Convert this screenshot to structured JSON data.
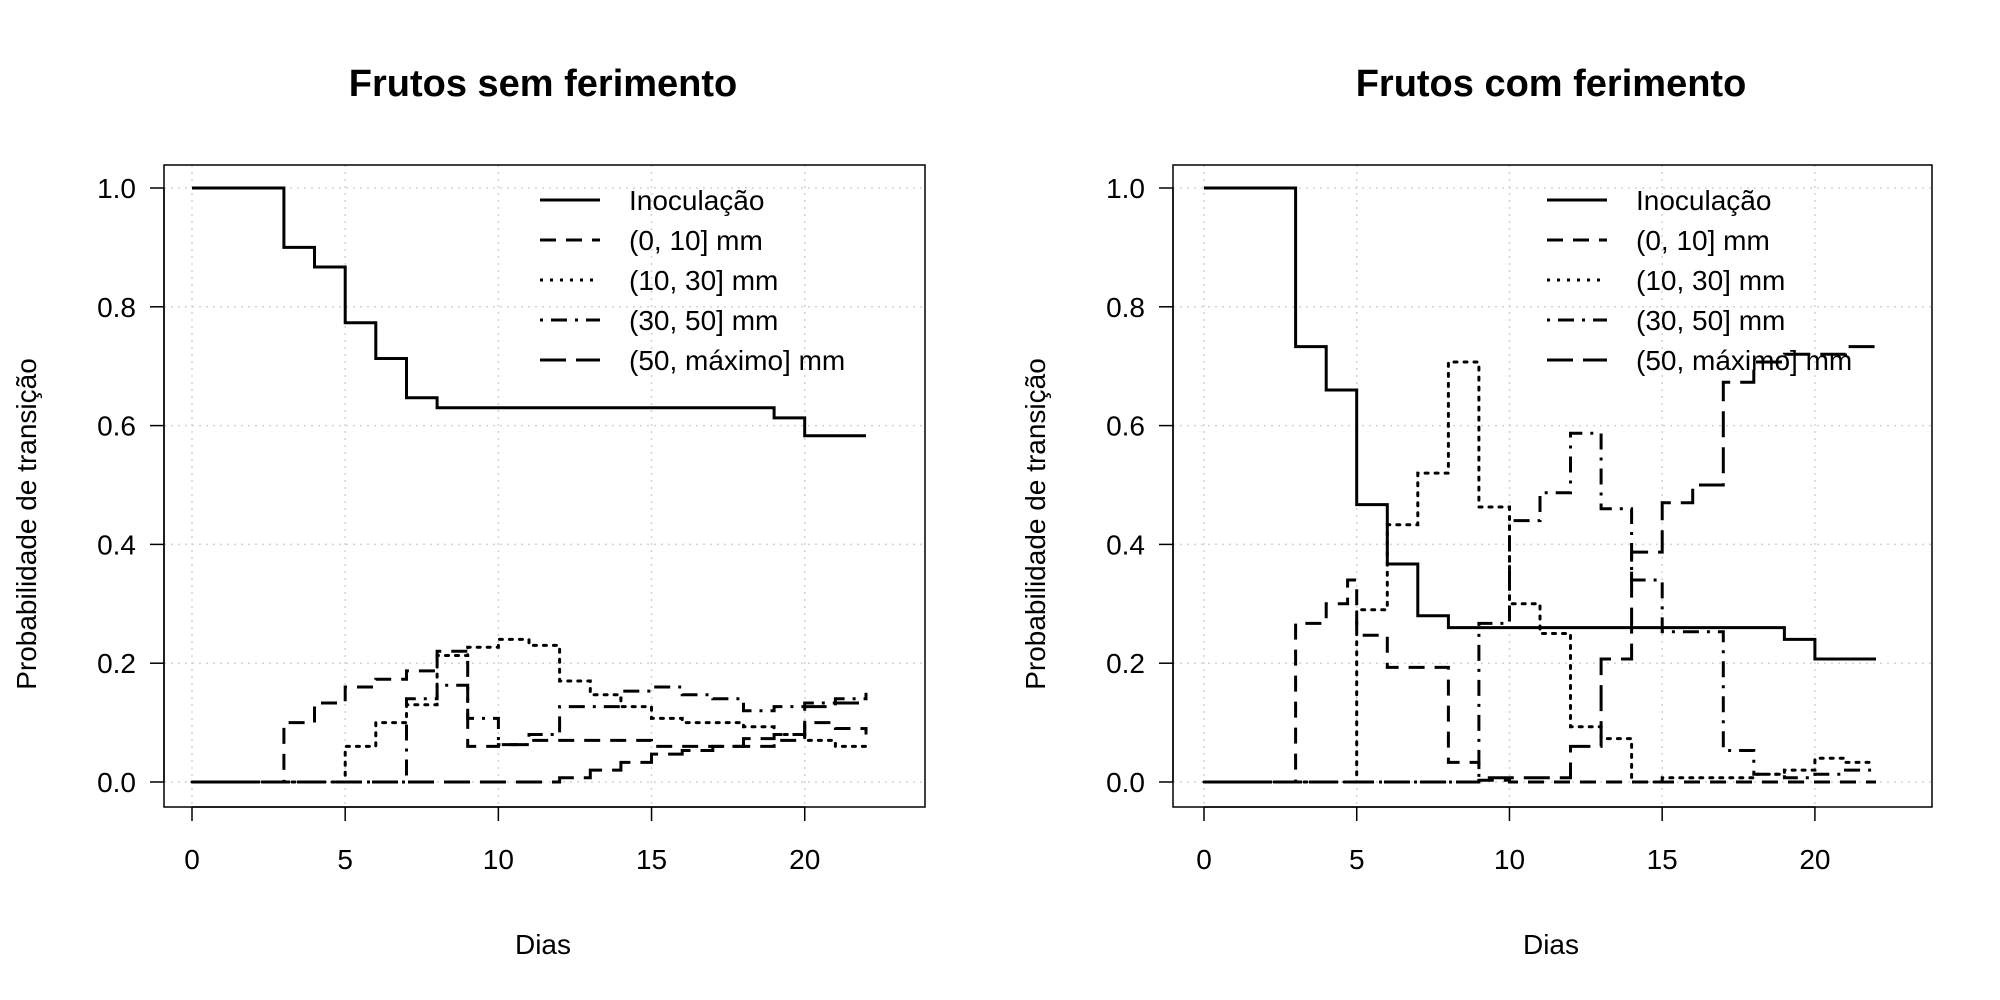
{
  "chart_data": [
    {
      "type": "line",
      "step": true,
      "title": "Frutos sem ferimento",
      "xlabel": "Dias",
      "ylabel": "Probabilidade de transição",
      "xlim": [
        0,
        22
      ],
      "ylim": [
        0,
        1
      ],
      "xticks": [
        0,
        5,
        10,
        15,
        20
      ],
      "yticks": [
        "0.0",
        "0.2",
        "0.4",
        "0.6",
        "0.8",
        "1.0"
      ],
      "grid": true,
      "legend_position": "top-right",
      "series": [
        {
          "name": "Inoculação",
          "dash": "solid",
          "points": [
            [
              0,
              1.0
            ],
            [
              3,
              0.9
            ],
            [
              4,
              0.867
            ],
            [
              5,
              0.773
            ],
            [
              6,
              0.713
            ],
            [
              7,
              0.647
            ],
            [
              8,
              0.63
            ],
            [
              19,
              0.613
            ],
            [
              20,
              0.583
            ],
            [
              22,
              0.583
            ]
          ]
        },
        {
          "name": "(0, 10] mm",
          "dash": "dashed",
          "points": [
            [
              0,
              0
            ],
            [
              3,
              0.1
            ],
            [
              4,
              0.133
            ],
            [
              5,
              0.16
            ],
            [
              6,
              0.173
            ],
            [
              7,
              0.187
            ],
            [
              8,
              0.22
            ],
            [
              9,
              0.06
            ],
            [
              10,
              0.063
            ],
            [
              11,
              0.07
            ],
            [
              15,
              0.06
            ],
            [
              19,
              0.07
            ],
            [
              20,
              0.1
            ],
            [
              21,
              0.09
            ],
            [
              22,
              0.08
            ]
          ]
        },
        {
          "name": "(10, 30] mm",
          "dash": "dotted",
          "points": [
            [
              0,
              0
            ],
            [
              5,
              0.06
            ],
            [
              6,
              0.1
            ],
            [
              7,
              0.13
            ],
            [
              8,
              0.213
            ],
            [
              9,
              0.227
            ],
            [
              10,
              0.24
            ],
            [
              11,
              0.23
            ],
            [
              12,
              0.17
            ],
            [
              13,
              0.147
            ],
            [
              14,
              0.127
            ],
            [
              15,
              0.107
            ],
            [
              16,
              0.1
            ],
            [
              17,
              0.1
            ],
            [
              18,
              0.093
            ],
            [
              19,
              0.08
            ],
            [
              20,
              0.07
            ],
            [
              21,
              0.06
            ],
            [
              22,
              0.05
            ]
          ]
        },
        {
          "name": "(30, 50] mm",
          "dash": "dotdash",
          "points": [
            [
              0,
              0
            ],
            [
              7,
              0.14
            ],
            [
              8,
              0.163
            ],
            [
              9,
              0.107
            ],
            [
              10,
              0.063
            ],
            [
              11,
              0.08
            ],
            [
              12,
              0.127
            ],
            [
              13,
              0.127
            ],
            [
              14,
              0.153
            ],
            [
              15,
              0.16
            ],
            [
              16,
              0.147
            ],
            [
              17,
              0.14
            ],
            [
              18,
              0.12
            ],
            [
              19,
              0.127
            ],
            [
              20,
              0.133
            ],
            [
              21,
              0.14
            ],
            [
              22,
              0.15
            ]
          ]
        },
        {
          "name": "(50, máximo] mm",
          "dash": "longdash",
          "points": [
            [
              0,
              0
            ],
            [
              12,
              0.007
            ],
            [
              13,
              0.02
            ],
            [
              14,
              0.033
            ],
            [
              15,
              0.047
            ],
            [
              16,
              0.053
            ],
            [
              17,
              0.06
            ],
            [
              18,
              0.073
            ],
            [
              19,
              0.08
            ],
            [
              20,
              0.127
            ],
            [
              21,
              0.133
            ],
            [
              22,
              0.15
            ]
          ]
        }
      ]
    },
    {
      "type": "line",
      "step": true,
      "title": "Frutos com ferimento",
      "xlabel": "Dias",
      "ylabel": "Probabilidade de transição",
      "xlim": [
        0,
        22
      ],
      "ylim": [
        0,
        1
      ],
      "xticks": [
        0,
        5,
        10,
        15,
        20
      ],
      "yticks": [
        "0.0",
        "0.2",
        "0.4",
        "0.6",
        "0.8",
        "1.0"
      ],
      "grid": true,
      "legend_position": "top-right",
      "series": [
        {
          "name": "Inoculação",
          "dash": "solid",
          "points": [
            [
              0,
              1.0
            ],
            [
              3,
              0.733
            ],
            [
              4,
              0.66
            ],
            [
              5,
              0.467
            ],
            [
              6,
              0.367
            ],
            [
              7,
              0.28
            ],
            [
              8,
              0.26
            ],
            [
              19,
              0.24
            ],
            [
              20,
              0.207
            ],
            [
              22,
              0.207
            ]
          ]
        },
        {
          "name": "(0, 10] mm",
          "dash": "dashed",
          "points": [
            [
              0,
              0
            ],
            [
              3,
              0.267
            ],
            [
              4,
              0.3
            ],
            [
              4.7,
              0.34
            ],
            [
              5,
              0.247
            ],
            [
              6,
              0.193
            ],
            [
              8,
              0.033
            ],
            [
              9,
              0.003
            ],
            [
              10,
              0.0
            ],
            [
              22,
              0.0
            ]
          ]
        },
        {
          "name": "(10, 30] mm",
          "dash": "dotted",
          "points": [
            [
              0,
              0
            ],
            [
              5,
              0.29
            ],
            [
              6,
              0.433
            ],
            [
              7,
              0.52
            ],
            [
              8,
              0.707
            ],
            [
              9,
              0.463
            ],
            [
              10,
              0.3
            ],
            [
              11,
              0.25
            ],
            [
              12,
              0.093
            ],
            [
              13,
              0.073
            ],
            [
              14,
              0.0
            ],
            [
              15,
              0.007
            ],
            [
              18,
              0.013
            ],
            [
              19,
              0.02
            ],
            [
              20,
              0.04
            ],
            [
              21,
              0.033
            ],
            [
              22,
              0.033
            ]
          ]
        },
        {
          "name": "(30, 50] mm",
          "dash": "dotdash",
          "points": [
            [
              0,
              0
            ],
            [
              9,
              0.267
            ],
            [
              10,
              0.44
            ],
            [
              11,
              0.487
            ],
            [
              12,
              0.587
            ],
            [
              13,
              0.46
            ],
            [
              14,
              0.34
            ],
            [
              15,
              0.253
            ],
            [
              16,
              0.253
            ],
            [
              17,
              0.053
            ],
            [
              18,
              0.013
            ],
            [
              19,
              0.007
            ],
            [
              20,
              0.013
            ],
            [
              21,
              0.02
            ],
            [
              22,
              0.02
            ]
          ]
        },
        {
          "name": "(50, máximo] mm",
          "dash": "longdash",
          "points": [
            [
              0,
              0
            ],
            [
              9,
              0.007
            ],
            [
              12,
              0.06
            ],
            [
              13,
              0.207
            ],
            [
              14,
              0.387
            ],
            [
              15,
              0.47
            ],
            [
              16,
              0.5
            ],
            [
              17,
              0.673
            ],
            [
              18,
              0.707
            ],
            [
              19,
              0.72
            ],
            [
              20,
              0.72
            ],
            [
              21,
              0.733
            ],
            [
              22,
              0.733
            ]
          ]
        }
      ]
    }
  ]
}
